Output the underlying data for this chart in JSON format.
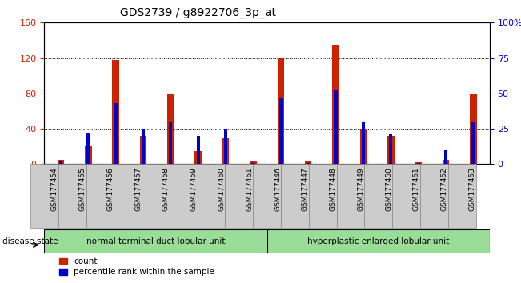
{
  "title": "GDS2739 / g8922706_3p_at",
  "samples": [
    "GSM177454",
    "GSM177455",
    "GSM177456",
    "GSM177457",
    "GSM177458",
    "GSM177459",
    "GSM177460",
    "GSM177461",
    "GSM177446",
    "GSM177447",
    "GSM177448",
    "GSM177449",
    "GSM177450",
    "GSM177451",
    "GSM177452",
    "GSM177453"
  ],
  "counts": [
    5,
    20,
    118,
    32,
    80,
    15,
    30,
    3,
    120,
    3,
    135,
    40,
    32,
    2,
    5,
    80
  ],
  "percentiles": [
    2,
    22,
    43,
    25,
    30,
    20,
    25,
    1,
    47,
    1,
    53,
    30,
    21,
    1,
    10,
    30
  ],
  "count_color": "#cc2200",
  "percentile_color": "#0000cc",
  "ylim_left": [
    0,
    160
  ],
  "ylim_right": [
    0,
    100
  ],
  "yticks_left": [
    0,
    40,
    80,
    120,
    160
  ],
  "yticks_right": [
    0,
    25,
    50,
    75,
    100
  ],
  "yticklabels_right": [
    "0",
    "25",
    "50",
    "75",
    "100%"
  ],
  "group1_label": "normal terminal duct lobular unit",
  "group2_label": "hyperplastic enlarged lobular unit",
  "group1_n": 8,
  "group2_n": 8,
  "group_color": "#99dd99",
  "disease_state_label": "disease state",
  "legend_count": "count",
  "legend_percentile": "percentile rank within the sample",
  "tick_label_color_left": "#cc2200",
  "tick_label_color_right": "#0000cc",
  "xtick_bg_color": "#cccccc",
  "xtick_border_color": "#888888"
}
